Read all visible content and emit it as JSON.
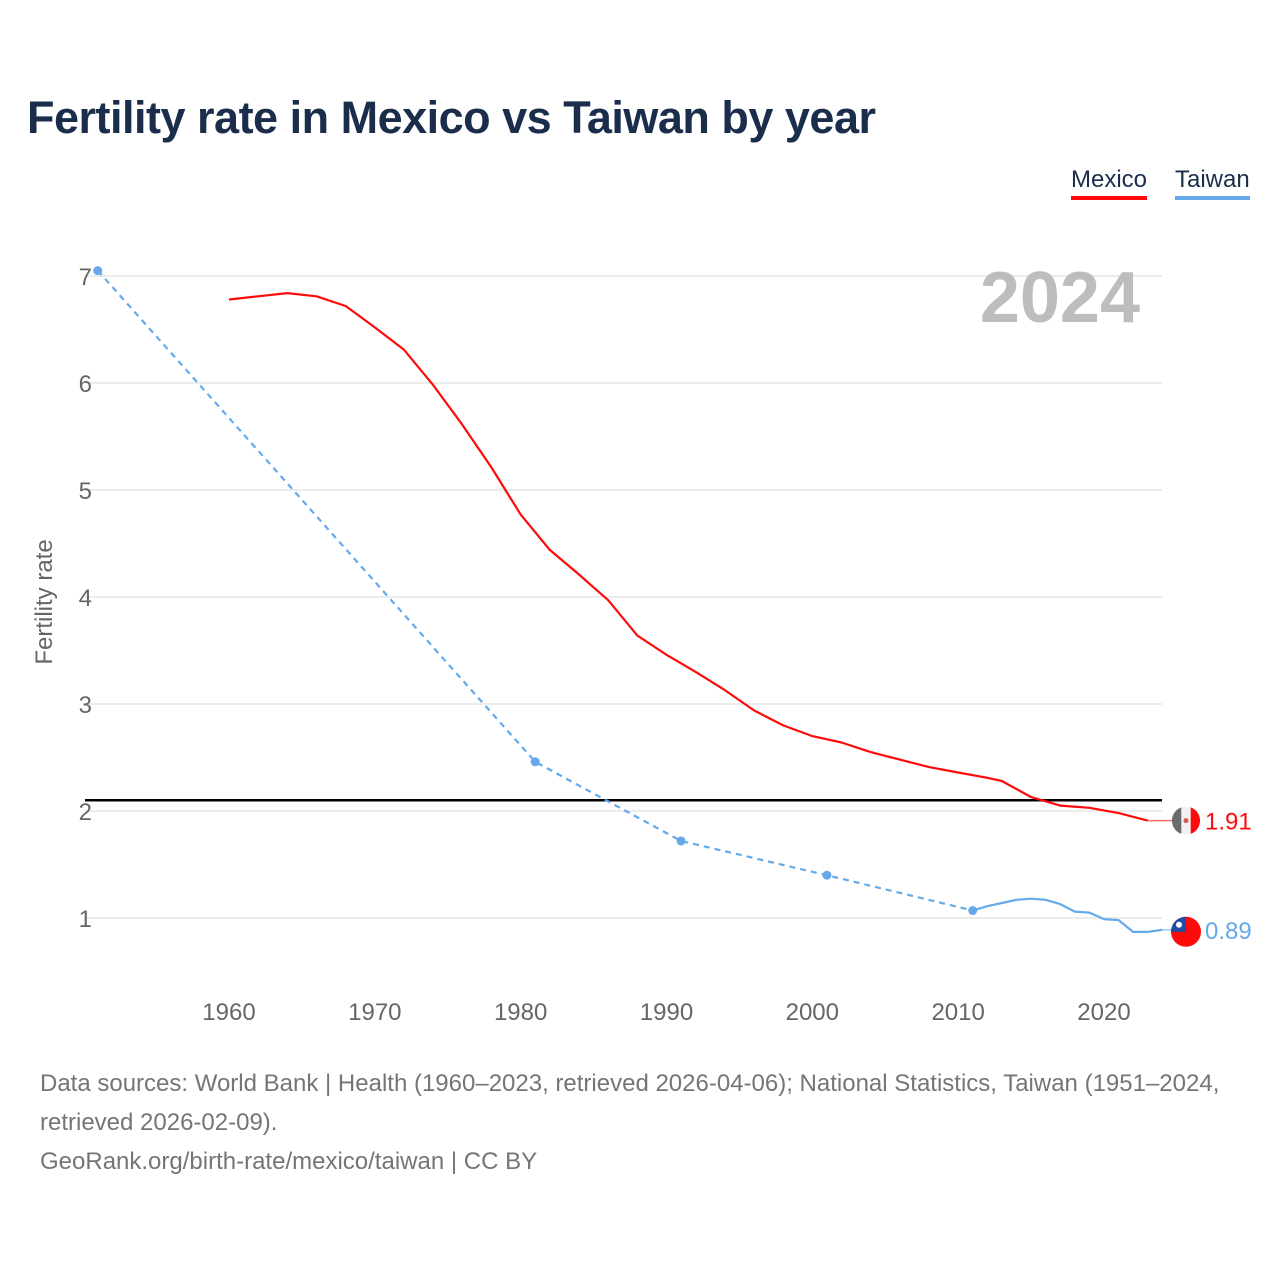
{
  "chart_data": {
    "type": "line",
    "title": "Fertility rate in Mexico vs Taiwan by year",
    "ylabel": "Fertility rate",
    "xlabel": "",
    "ylim": [
      0.5,
      7.2
    ],
    "xlim": [
      1951,
      2024
    ],
    "x_ticks": [
      1960,
      1970,
      1980,
      1990,
      2000,
      2010,
      2020
    ],
    "y_ticks": [
      1,
      2,
      3,
      4,
      5,
      6,
      7
    ],
    "grid": true,
    "legend_position": "top-right",
    "year_label": "2024",
    "reference_line": 2.1,
    "series": [
      {
        "name": "Mexico",
        "color": "#ff0a0a",
        "end_label": "1.91",
        "solid": [
          [
            1960,
            6.78
          ],
          [
            1962,
            6.81
          ],
          [
            1964,
            6.84
          ],
          [
            1966,
            6.81
          ],
          [
            1968,
            6.72
          ],
          [
            1970,
            6.52
          ],
          [
            1972,
            6.31
          ],
          [
            1974,
            5.98
          ],
          [
            1976,
            5.61
          ],
          [
            1978,
            5.21
          ],
          [
            1980,
            4.77
          ],
          [
            1982,
            4.44
          ],
          [
            1984,
            4.21
          ],
          [
            1985,
            4.09
          ],
          [
            1986,
            3.97
          ],
          [
            1988,
            3.64
          ],
          [
            1990,
            3.46
          ],
          [
            1992,
            3.3
          ],
          [
            1994,
            3.13
          ],
          [
            1996,
            2.94
          ],
          [
            1998,
            2.8
          ],
          [
            2000,
            2.7
          ],
          [
            2002,
            2.64
          ],
          [
            2004,
            2.55
          ],
          [
            2006,
            2.48
          ],
          [
            2008,
            2.41
          ],
          [
            2010,
            2.36
          ],
          [
            2012,
            2.31
          ],
          [
            2013,
            2.28
          ],
          [
            2015,
            2.13
          ],
          [
            2017,
            2.05
          ],
          [
            2019,
            2.03
          ],
          [
            2021,
            1.98
          ],
          [
            2023,
            1.91
          ]
        ],
        "dashed": []
      },
      {
        "name": "Taiwan",
        "color": "#65a9ea",
        "end_label": "0.89",
        "dashed": [
          [
            1951,
            7.05
          ],
          [
            1981,
            2.46
          ],
          [
            1991,
            1.72
          ],
          [
            2001,
            1.4
          ],
          [
            2011,
            1.07
          ]
        ],
        "solid": [
          [
            2011,
            1.07
          ],
          [
            2012,
            1.11
          ],
          [
            2013,
            1.14
          ],
          [
            2014,
            1.17
          ],
          [
            2015,
            1.18
          ],
          [
            2016,
            1.17
          ],
          [
            2017,
            1.13
          ],
          [
            2018,
            1.06
          ],
          [
            2019,
            1.05
          ],
          [
            2020,
            0.99
          ],
          [
            2021,
            0.98
          ],
          [
            2022,
            0.87
          ],
          [
            2023,
            0.87
          ],
          [
            2024,
            0.89
          ]
        ]
      }
    ]
  },
  "footer": {
    "sources": "Data sources: World Bank | Health (1960–2023, retrieved 2026-04-06); National Statistics, Taiwan (1951–2024, retrieved 2026-02-09).",
    "link": "GeoRank.org/birth-rate/mexico/taiwan | CC BY"
  }
}
